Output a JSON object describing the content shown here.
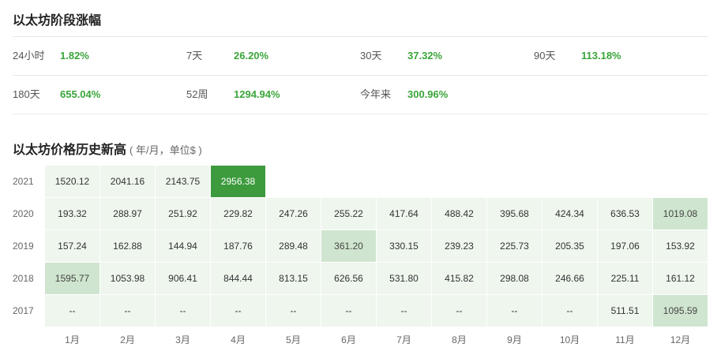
{
  "change_title": "以太坊阶段涨幅",
  "changes": [
    {
      "label": "24小时",
      "value": "1.82%"
    },
    {
      "label": "7天",
      "value": "26.20%"
    },
    {
      "label": "30天",
      "value": "37.32%"
    },
    {
      "label": "90天",
      "value": "113.18%"
    },
    {
      "label": "180天",
      "value": "655.04%"
    },
    {
      "label": "52周",
      "value": "1294.94%"
    },
    {
      "label": "今年来",
      "value": "300.96%"
    }
  ],
  "history_title": "以太坊价格历史新高",
  "history_unit": "( 年/月，单位$ )",
  "months": [
    "1月",
    "2月",
    "3月",
    "4月",
    "5月",
    "6月",
    "7月",
    "8月",
    "9月",
    "10月",
    "11月",
    "12月"
  ],
  "years": [
    {
      "year": "2021",
      "values": [
        "1520.12",
        "2041.16",
        "2143.75",
        "2956.38",
        "",
        "",
        "",
        "",
        "",
        "",
        "",
        ""
      ]
    },
    {
      "year": "2020",
      "values": [
        "193.32",
        "288.97",
        "251.92",
        "229.82",
        "247.26",
        "255.22",
        "417.64",
        "488.42",
        "395.68",
        "424.34",
        "636.53",
        "1019.08"
      ]
    },
    {
      "year": "2019",
      "values": [
        "157.24",
        "162.88",
        "144.94",
        "187.76",
        "289.48",
        "361.20",
        "330.15",
        "239.23",
        "225.73",
        "205.35",
        "197.06",
        "153.92"
      ]
    },
    {
      "year": "2018",
      "values": [
        "1595.77",
        "1053.98",
        "906.41",
        "844.44",
        "813.15",
        "626.56",
        "531.80",
        "415.82",
        "298.08",
        "246.66",
        "225.11",
        "161.12"
      ]
    },
    {
      "year": "2017",
      "values": [
        "--",
        "--",
        "--",
        "--",
        "--",
        "--",
        "--",
        "--",
        "--",
        "--",
        "511.51",
        "1095.59"
      ]
    }
  ],
  "colors": {
    "accent_green": "#3aa53a",
    "max_cell": "#3d9a3d",
    "highlight_cell": "#cfe5cf",
    "cell_bg": "#eef6ee"
  }
}
